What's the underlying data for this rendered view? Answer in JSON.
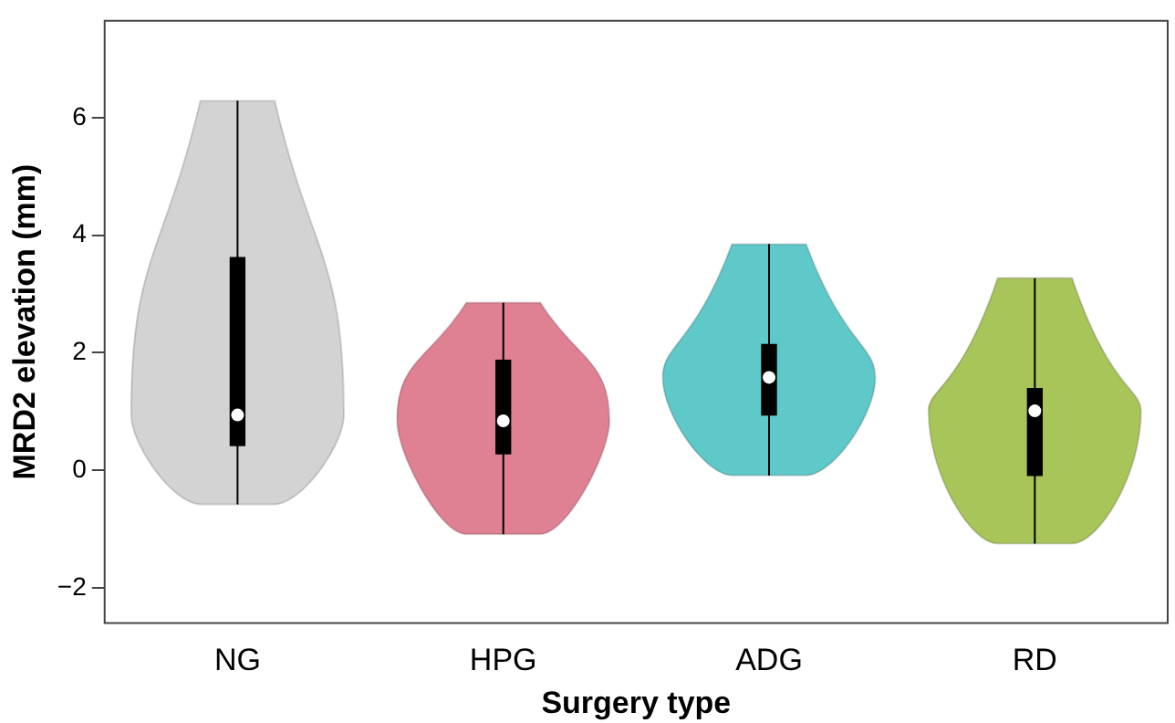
{
  "chart_data": {
    "type": "box",
    "xlabel": "Surgery type",
    "ylabel": "MRD2 elevation (mm)",
    "categories": [
      "NG",
      "HPG",
      "ADG",
      "RD"
    ],
    "color": "#000000",
    "boxes": [
      {
        "low": -0.58,
        "q1": 0.42,
        "median": 0.94,
        "q3": 3.62,
        "high": 6.29
      },
      {
        "low": -1.09,
        "q1": 0.28,
        "median": 0.84,
        "q3": 1.87,
        "high": 2.85
      },
      {
        "low": -0.09,
        "q1": 0.94,
        "median": 1.58,
        "q3": 2.14,
        "high": 3.85
      },
      {
        "low": -1.25,
        "q1": -0.09,
        "median": 1.01,
        "q3": 1.39,
        "high": 3.27
      }
    ],
    "ylim": [
      -2.6,
      7.65
    ],
    "yticks": [
      -2,
      0,
      2,
      4,
      6
    ],
    "grid": false,
    "legend": false
  }
}
